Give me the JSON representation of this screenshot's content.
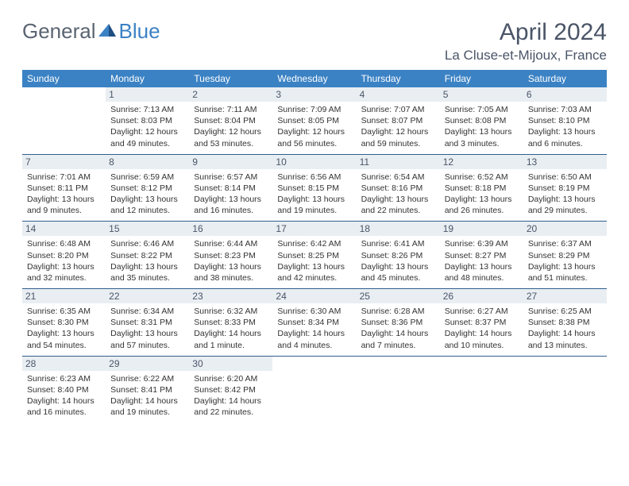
{
  "brand": {
    "part1": "General",
    "part2": "Blue"
  },
  "title": "April 2024",
  "location": "La Cluse-et-Mijoux, France",
  "colors": {
    "header_bg": "#3b82c4",
    "header_text": "#ffffff",
    "daynum_bg": "#e9eef2",
    "text": "#333333",
    "title_color": "#4a5568",
    "row_border": "#2f5f8f"
  },
  "typography": {
    "title_fontsize": 30,
    "location_fontsize": 17,
    "dayheader_fontsize": 12,
    "daynum_fontsize": 12,
    "cell_fontsize": 10.5
  },
  "day_headers": [
    "Sunday",
    "Monday",
    "Tuesday",
    "Wednesday",
    "Thursday",
    "Friday",
    "Saturday"
  ],
  "weeks": [
    [
      null,
      {
        "n": "1",
        "sunrise": "7:13 AM",
        "sunset": "8:03 PM",
        "daylight": "12 hours and 49 minutes."
      },
      {
        "n": "2",
        "sunrise": "7:11 AM",
        "sunset": "8:04 PM",
        "daylight": "12 hours and 53 minutes."
      },
      {
        "n": "3",
        "sunrise": "7:09 AM",
        "sunset": "8:05 PM",
        "daylight": "12 hours and 56 minutes."
      },
      {
        "n": "4",
        "sunrise": "7:07 AM",
        "sunset": "8:07 PM",
        "daylight": "12 hours and 59 minutes."
      },
      {
        "n": "5",
        "sunrise": "7:05 AM",
        "sunset": "8:08 PM",
        "daylight": "13 hours and 3 minutes."
      },
      {
        "n": "6",
        "sunrise": "7:03 AM",
        "sunset": "8:10 PM",
        "daylight": "13 hours and 6 minutes."
      }
    ],
    [
      {
        "n": "7",
        "sunrise": "7:01 AM",
        "sunset": "8:11 PM",
        "daylight": "13 hours and 9 minutes."
      },
      {
        "n": "8",
        "sunrise": "6:59 AM",
        "sunset": "8:12 PM",
        "daylight": "13 hours and 12 minutes."
      },
      {
        "n": "9",
        "sunrise": "6:57 AM",
        "sunset": "8:14 PM",
        "daylight": "13 hours and 16 minutes."
      },
      {
        "n": "10",
        "sunrise": "6:56 AM",
        "sunset": "8:15 PM",
        "daylight": "13 hours and 19 minutes."
      },
      {
        "n": "11",
        "sunrise": "6:54 AM",
        "sunset": "8:16 PM",
        "daylight": "13 hours and 22 minutes."
      },
      {
        "n": "12",
        "sunrise": "6:52 AM",
        "sunset": "8:18 PM",
        "daylight": "13 hours and 26 minutes."
      },
      {
        "n": "13",
        "sunrise": "6:50 AM",
        "sunset": "8:19 PM",
        "daylight": "13 hours and 29 minutes."
      }
    ],
    [
      {
        "n": "14",
        "sunrise": "6:48 AM",
        "sunset": "8:20 PM",
        "daylight": "13 hours and 32 minutes."
      },
      {
        "n": "15",
        "sunrise": "6:46 AM",
        "sunset": "8:22 PM",
        "daylight": "13 hours and 35 minutes."
      },
      {
        "n": "16",
        "sunrise": "6:44 AM",
        "sunset": "8:23 PM",
        "daylight": "13 hours and 38 minutes."
      },
      {
        "n": "17",
        "sunrise": "6:42 AM",
        "sunset": "8:25 PM",
        "daylight": "13 hours and 42 minutes."
      },
      {
        "n": "18",
        "sunrise": "6:41 AM",
        "sunset": "8:26 PM",
        "daylight": "13 hours and 45 minutes."
      },
      {
        "n": "19",
        "sunrise": "6:39 AM",
        "sunset": "8:27 PM",
        "daylight": "13 hours and 48 minutes."
      },
      {
        "n": "20",
        "sunrise": "6:37 AM",
        "sunset": "8:29 PM",
        "daylight": "13 hours and 51 minutes."
      }
    ],
    [
      {
        "n": "21",
        "sunrise": "6:35 AM",
        "sunset": "8:30 PM",
        "daylight": "13 hours and 54 minutes."
      },
      {
        "n": "22",
        "sunrise": "6:34 AM",
        "sunset": "8:31 PM",
        "daylight": "13 hours and 57 minutes."
      },
      {
        "n": "23",
        "sunrise": "6:32 AM",
        "sunset": "8:33 PM",
        "daylight": "14 hours and 1 minute."
      },
      {
        "n": "24",
        "sunrise": "6:30 AM",
        "sunset": "8:34 PM",
        "daylight": "14 hours and 4 minutes."
      },
      {
        "n": "25",
        "sunrise": "6:28 AM",
        "sunset": "8:36 PM",
        "daylight": "14 hours and 7 minutes."
      },
      {
        "n": "26",
        "sunrise": "6:27 AM",
        "sunset": "8:37 PM",
        "daylight": "14 hours and 10 minutes."
      },
      {
        "n": "27",
        "sunrise": "6:25 AM",
        "sunset": "8:38 PM",
        "daylight": "14 hours and 13 minutes."
      }
    ],
    [
      {
        "n": "28",
        "sunrise": "6:23 AM",
        "sunset": "8:40 PM",
        "daylight": "14 hours and 16 minutes."
      },
      {
        "n": "29",
        "sunrise": "6:22 AM",
        "sunset": "8:41 PM",
        "daylight": "14 hours and 19 minutes."
      },
      {
        "n": "30",
        "sunrise": "6:20 AM",
        "sunset": "8:42 PM",
        "daylight": "14 hours and 22 minutes."
      },
      null,
      null,
      null,
      null
    ]
  ]
}
